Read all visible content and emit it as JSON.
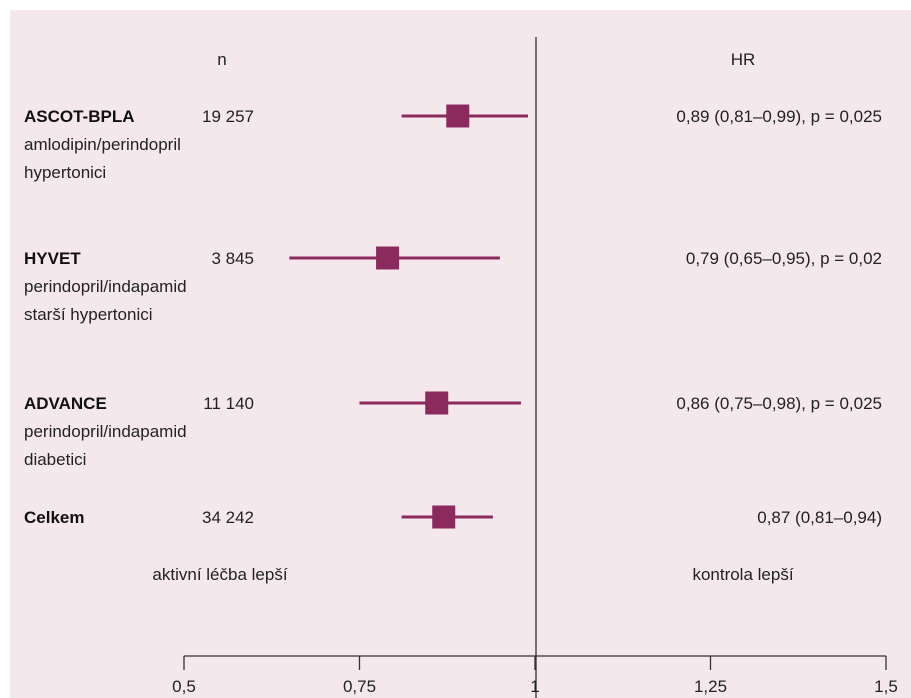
{
  "chart_data": {
    "type": "forest",
    "header_n": "n",
    "header_hr": "HR",
    "x_ticks": [
      {
        "value": 0.5,
        "label": "0,5"
      },
      {
        "value": 0.75,
        "label": "0,75"
      },
      {
        "value": 1.0,
        "label": "1"
      },
      {
        "value": 1.25,
        "label": "1,25"
      },
      {
        "value": 1.5,
        "label": "1,5"
      }
    ],
    "xlim": [
      0.5,
      1.5
    ],
    "reference_value": 1.0,
    "left_label": "aktivní léčba lepší",
    "right_label": "kontrola lepší",
    "marker_color": "#8b2a5c",
    "background_color": "#f5e8ec",
    "studies": [
      {
        "name": "ASCOT-BPLA",
        "n": "19 257",
        "sublines": [
          "amlodipin/perindopril",
          "hypertonici"
        ],
        "hr": 0.89,
        "ci_low": 0.81,
        "ci_high": 0.99,
        "result_text": "0,89 (0,81–0,99), p = 0,025"
      },
      {
        "name": "HYVET",
        "n": "3 845",
        "sublines": [
          "perindopril/indapamid",
          "starší hypertonici"
        ],
        "hr": 0.79,
        "ci_low": 0.65,
        "ci_high": 0.95,
        "result_text": "0,79 (0,65–0,95), p = 0,02"
      },
      {
        "name": "ADVANCE",
        "n": "11 140",
        "sublines": [
          "perindopril/indapamid",
          "diabetici"
        ],
        "hr": 0.86,
        "ci_low": 0.75,
        "ci_high": 0.98,
        "result_text": "0,86 (0,75–0,98), p = 0,025"
      },
      {
        "name": "Celkem",
        "n": "34 242",
        "sublines": [],
        "hr": 0.87,
        "ci_low": 0.81,
        "ci_high": 0.94,
        "result_text": "0,87 (0,81–0,94)"
      }
    ]
  }
}
